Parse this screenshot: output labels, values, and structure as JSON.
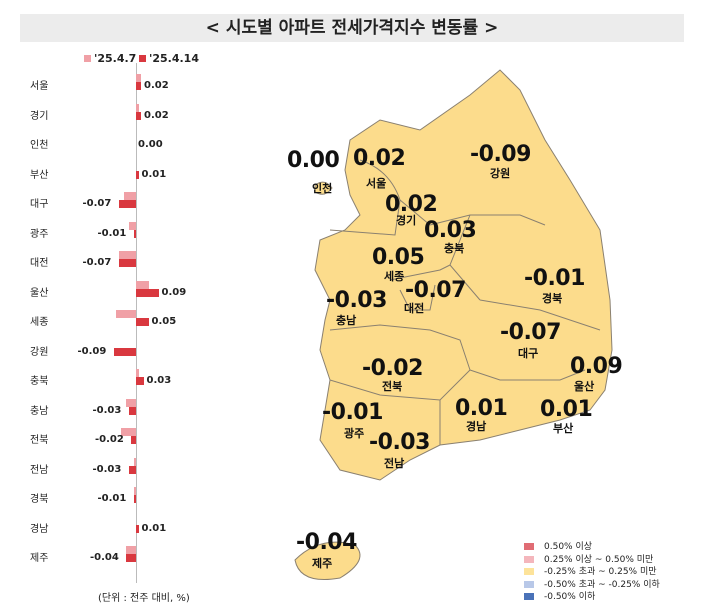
{
  "title": "< 시도별 아파트 전세가격지수 변동률 >",
  "chart_data": {
    "type": "bar",
    "orientation": "horizontal",
    "categories": [
      "서울",
      "경기",
      "인천",
      "부산",
      "대구",
      "광주",
      "대전",
      "울산",
      "세종",
      "강원",
      "충북",
      "충남",
      "전북",
      "전남",
      "경북",
      "경남",
      "제주"
    ],
    "series": [
      {
        "name": "'25.4.7",
        "color": "#f0a0a6",
        "values": [
          0.02,
          0.01,
          0.0,
          0.0,
          -0.05,
          -0.03,
          -0.07,
          0.05,
          -0.08,
          0.0,
          0.01,
          -0.04,
          -0.06,
          -0.01,
          -0.01,
          0.0,
          -0.04
        ]
      },
      {
        "name": "'25.4.14",
        "color": "#d9383f",
        "values": [
          0.02,
          0.02,
          0.0,
          0.01,
          -0.07,
          -0.01,
          -0.07,
          0.09,
          0.05,
          -0.09,
          0.03,
          -0.03,
          -0.02,
          -0.03,
          -0.01,
          0.01,
          -0.04
        ]
      }
    ],
    "labels": [
      "0.02",
      "0.02",
      "0.00",
      "0.01",
      "-0.07",
      "-0.01",
      "-0.07",
      "0.09",
      "0.05",
      "-0.09",
      "0.03",
      "-0.03",
      "-0.02",
      "-0.03",
      "-0.01",
      "0.01",
      "-0.04"
    ],
    "unit_note": "(단위 : 전주 대비, %)",
    "legend_placement": "top"
  },
  "map": {
    "regions": [
      {
        "name": "인천",
        "value": "0.00"
      },
      {
        "name": "서울",
        "value": "0.02"
      },
      {
        "name": "경기",
        "value": "0.02"
      },
      {
        "name": "강원",
        "value": "-0.09"
      },
      {
        "name": "충북",
        "value": "0.03"
      },
      {
        "name": "세종",
        "value": "0.05"
      },
      {
        "name": "대전",
        "value": "-0.07"
      },
      {
        "name": "충남",
        "value": "-0.03"
      },
      {
        "name": "경북",
        "value": "-0.01"
      },
      {
        "name": "대구",
        "value": "-0.07"
      },
      {
        "name": "울산",
        "value": "0.09"
      },
      {
        "name": "전북",
        "value": "-0.02"
      },
      {
        "name": "광주",
        "value": "-0.01"
      },
      {
        "name": "전남",
        "value": "-0.03"
      },
      {
        "name": "경남",
        "value": "0.01"
      },
      {
        "name": "부산",
        "value": "0.01"
      },
      {
        "name": "제주",
        "value": "-0.04"
      }
    ],
    "fill_color": "#fcdc8c",
    "legend": [
      {
        "label": "0.50% 이상",
        "color": "#e06c74"
      },
      {
        "label": "0.25% 이상 ~ 0.50% 미만",
        "color": "#f4b6bc"
      },
      {
        "label": "-0.25% 초과 ~ 0.25% 미만",
        "color": "#fde39a"
      },
      {
        "label": "-0.50% 초과 ~ -0.25% 이하",
        "color": "#b8c8e8"
      },
      {
        "label": "-0.50% 이하",
        "color": "#4a72b8"
      }
    ]
  }
}
